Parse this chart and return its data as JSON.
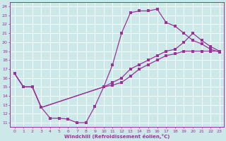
{
  "xlabel": "Windchill (Refroidissement éolien,°C)",
  "xlim": [
    -0.5,
    23.5
  ],
  "ylim": [
    10.5,
    24.5
  ],
  "xticks": [
    0,
    1,
    2,
    3,
    4,
    5,
    6,
    7,
    8,
    9,
    10,
    11,
    12,
    13,
    14,
    15,
    16,
    17,
    18,
    19,
    20,
    21,
    22,
    23
  ],
  "yticks": [
    11,
    12,
    13,
    14,
    15,
    16,
    17,
    18,
    19,
    20,
    21,
    22,
    23,
    24
  ],
  "bg_color": "#cce8e8",
  "line_color": "#993399",
  "grid_color": "#aacccc",
  "curve1_x": [
    0,
    1,
    2,
    3,
    4,
    5,
    6,
    7,
    8,
    9,
    10,
    11,
    12,
    13,
    14,
    15,
    16,
    17,
    18,
    19,
    20,
    21,
    22,
    23
  ],
  "curve1_y": [
    16.5,
    15.0,
    15.0,
    12.7,
    11.5,
    11.5,
    11.4,
    11.0,
    11.0,
    12.8,
    15.0,
    17.5,
    21.0,
    23.3,
    23.5,
    23.5,
    23.7,
    22.2,
    21.8,
    21.0,
    20.2,
    19.8,
    19.2,
    18.9
  ],
  "curve2_x": [
    0,
    1,
    2,
    3,
    10,
    11,
    12,
    13,
    14,
    15,
    16,
    17,
    18,
    19,
    20,
    21,
    22,
    23
  ],
  "curve2_y": [
    16.5,
    15.0,
    15.0,
    12.7,
    15.0,
    15.2,
    15.5,
    16.2,
    17.0,
    17.5,
    18.0,
    18.5,
    18.7,
    19.0,
    19.0,
    19.0,
    19.0,
    19.0
  ],
  "curve3_x": [
    0,
    1,
    2,
    3,
    10,
    11,
    12,
    13,
    14,
    15,
    16,
    17,
    18,
    19,
    20,
    21,
    22,
    23
  ],
  "curve3_y": [
    16.5,
    15.0,
    15.0,
    12.7,
    15.0,
    15.5,
    16.0,
    17.0,
    17.5,
    18.0,
    18.5,
    19.0,
    19.2,
    20.0,
    21.0,
    20.2,
    19.5,
    19.0
  ]
}
